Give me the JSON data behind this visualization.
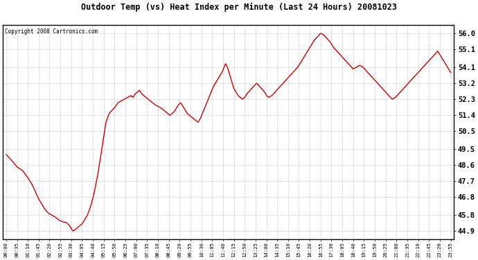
{
  "title": "Outdoor Temp (vs) Heat Index per Minute (Last 24 Hours) 20081023",
  "copyright": "Copyright 2008 Cartronics.com",
  "line_color": "#cc0000",
  "background_color": "#ffffff",
  "plot_bg_color": "#ffffff",
  "grid_color": "#bbbbbb",
  "yticks": [
    44.9,
    45.8,
    46.8,
    47.7,
    48.6,
    49.5,
    50.5,
    51.4,
    52.3,
    53.2,
    54.1,
    55.1,
    56.0
  ],
  "ylim": [
    44.45,
    56.45
  ],
  "xtick_labels": [
    "00:00",
    "00:35",
    "01:10",
    "01:45",
    "02:20",
    "02:55",
    "03:30",
    "04:05",
    "04:40",
    "05:15",
    "05:50",
    "06:25",
    "07:00",
    "07:35",
    "08:10",
    "08:45",
    "09:20",
    "09:55",
    "10:30",
    "11:05",
    "11:40",
    "12:15",
    "12:50",
    "13:25",
    "14:00",
    "14:35",
    "15:10",
    "15:45",
    "16:20",
    "16:55",
    "17:30",
    "18:05",
    "18:40",
    "19:15",
    "19:50",
    "20:25",
    "21:00",
    "21:35",
    "22:10",
    "22:45",
    "23:20",
    "23:55"
  ],
  "key_times": [
    0.0,
    0.6,
    1.0,
    1.5,
    2.0,
    2.4,
    2.7,
    3.0,
    3.3,
    3.6,
    3.9,
    4.2,
    4.5,
    4.7,
    4.9,
    5.1,
    5.3,
    5.5,
    5.7,
    5.85,
    5.95,
    6.1,
    6.2,
    6.4,
    6.6,
    6.8,
    7.0,
    7.2,
    7.5,
    7.8,
    8.1,
    8.4,
    8.7,
    9.0,
    9.2,
    9.5,
    9.8,
    10.1,
    10.3,
    10.6,
    10.9,
    11.2,
    11.5,
    11.7,
    11.9,
    12.1,
    12.3,
    12.5,
    12.7,
    12.9,
    13.1,
    13.3,
    13.5,
    13.7,
    14.0,
    14.3,
    14.5,
    14.7,
    14.9,
    15.1,
    15.3,
    15.5,
    15.7,
    15.9,
    16.1,
    16.3,
    16.5,
    16.7,
    16.9,
    17.1,
    17.3,
    17.5,
    17.7,
    17.9,
    18.1,
    18.3,
    18.5,
    18.7,
    18.9,
    19.1,
    19.3,
    19.5,
    19.7,
    19.9,
    20.1,
    20.25,
    20.4,
    20.55,
    20.7,
    20.85,
    21.0,
    21.2,
    21.4,
    21.6,
    21.8,
    22.0,
    22.2,
    22.5,
    22.8,
    23.1,
    23.4,
    23.7,
    23.95,
    24.0,
    24.2,
    24.5,
    24.8,
    25.1,
    25.4,
    25.7,
    26.0,
    26.3,
    26.6,
    26.9,
    27.2,
    27.5,
    27.8,
    28.1,
    28.4,
    28.7,
    29.0,
    29.3,
    29.6,
    29.9,
    30.2,
    30.5,
    30.8,
    31.1,
    31.4,
    31.7,
    32.0,
    32.3,
    32.6,
    32.9,
    33.2,
    33.5,
    33.8,
    34.1,
    34.4,
    34.7,
    35.0,
    35.3,
    35.6,
    35.9,
    36.2,
    36.5,
    36.8,
    37.1,
    37.4,
    37.7,
    38.0,
    38.3,
    38.6,
    38.9,
    39.2,
    39.5,
    39.8,
    40.1,
    40.4,
    40.7,
    41.0
  ],
  "key_values": [
    49.2,
    48.8,
    48.5,
    48.3,
    47.9,
    47.5,
    47.1,
    46.7,
    46.4,
    46.1,
    45.9,
    45.8,
    45.7,
    45.6,
    45.5,
    45.45,
    45.4,
    45.4,
    45.3,
    45.2,
    45.1,
    44.95,
    44.9,
    45.0,
    45.1,
    45.2,
    45.3,
    45.5,
    45.8,
    46.3,
    47.0,
    47.9,
    49.0,
    50.2,
    51.0,
    51.5,
    51.7,
    51.9,
    52.1,
    52.2,
    52.3,
    52.4,
    52.5,
    52.4,
    52.6,
    52.7,
    52.8,
    52.6,
    52.5,
    52.4,
    52.3,
    52.2,
    52.1,
    52.0,
    51.9,
    51.8,
    51.7,
    51.6,
    51.5,
    51.4,
    51.5,
    51.6,
    51.8,
    52.0,
    52.1,
    51.9,
    51.7,
    51.5,
    51.4,
    51.3,
    51.2,
    51.1,
    51.0,
    51.2,
    51.5,
    51.8,
    52.1,
    52.4,
    52.7,
    53.0,
    53.2,
    53.4,
    53.6,
    53.8,
    54.1,
    54.3,
    54.1,
    53.8,
    53.5,
    53.2,
    52.9,
    52.7,
    52.5,
    52.4,
    52.3,
    52.4,
    52.6,
    52.8,
    53.0,
    53.2,
    53.0,
    52.8,
    52.6,
    52.5,
    52.4,
    52.5,
    52.7,
    52.9,
    53.1,
    53.3,
    53.5,
    53.7,
    53.9,
    54.1,
    54.4,
    54.7,
    55.0,
    55.3,
    55.6,
    55.8,
    56.0,
    55.9,
    55.7,
    55.5,
    55.2,
    55.0,
    54.8,
    54.6,
    54.4,
    54.2,
    54.0,
    54.1,
    54.2,
    54.1,
    53.9,
    53.7,
    53.5,
    53.3,
    53.1,
    52.9,
    52.7,
    52.5,
    52.3,
    52.4,
    52.6,
    52.8,
    53.0,
    53.2,
    53.4,
    53.6,
    53.8,
    54.0,
    54.2,
    54.4,
    54.6,
    54.8,
    55.0,
    54.7,
    54.4,
    54.1,
    53.8
  ]
}
